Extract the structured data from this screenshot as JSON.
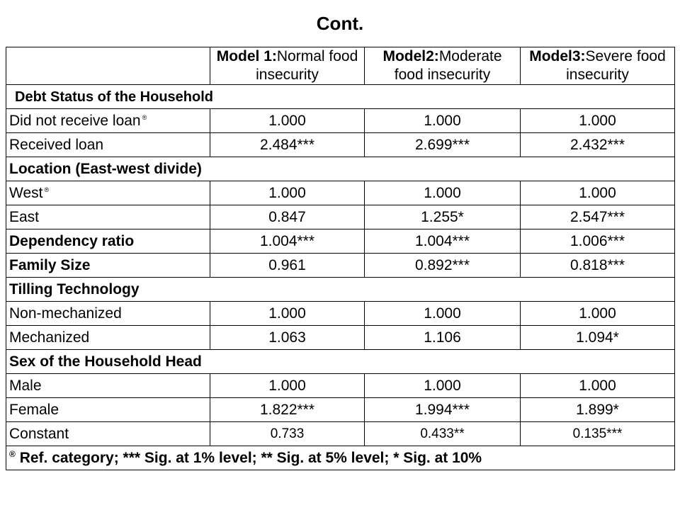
{
  "title": "Cont.",
  "header": {
    "model1": {
      "strong": "Model 1:",
      "rest": "Normal food insecurity"
    },
    "model2": {
      "strong": "Model2:",
      "rest": "Moderate food insecurity"
    },
    "model3": {
      "strong": "Model3:",
      "rest": "Severe food insecurity"
    }
  },
  "ref_symbol": "®",
  "sections": {
    "debt": "Debt Status of the Household",
    "location": "Location (East-west divide)",
    "tilling": "Tilling Technology",
    "sex": "Sex of the Household Head"
  },
  "rows": {
    "no_loan": {
      "label": "Did not receive loan",
      "v1": "1.000",
      "v2": "1.000",
      "v3": "1.000"
    },
    "loan": {
      "label": "Received loan",
      "v1": "2.484***",
      "v2": "2.699***",
      "v3": "2.432***"
    },
    "west": {
      "label": "West",
      "v1": "1.000",
      "v2": "1.000",
      "v3": "1.000"
    },
    "east": {
      "label": "East",
      "v1": "0.847",
      "v2": "1.255*",
      "v3": "2.547***"
    },
    "dependency": {
      "label": "Dependency  ratio",
      "v1": "1.004***",
      "v2": "1.004***",
      "v3": "1.006***"
    },
    "family": {
      "label": "Family Size",
      "v1": "0.961",
      "v2": "0.892***",
      "v3": "0.818***"
    },
    "nonmech": {
      "label": "Non-mechanized",
      "v1": "1.000",
      "v2": "1.000",
      "v3": "1.000"
    },
    "mech": {
      "label": "Mechanized",
      "v1": "1.063",
      "v2": "1.106",
      "v3": "1.094*"
    },
    "male": {
      "label": "Male",
      "v1": "1.000",
      "v2": "1.000",
      "v3": "1.000"
    },
    "female": {
      "label": "Female",
      "v1": "1.822***",
      "v2": "1.994***",
      "v3": "1.899*"
    },
    "constant": {
      "label": "Constant",
      "v1": "0.733",
      "v2": "0.433**",
      "v3": "0.135***"
    }
  },
  "footnote": "Ref. category; *** Sig. at 1% level; ** Sig. at 5% level; * Sig. at 10%"
}
